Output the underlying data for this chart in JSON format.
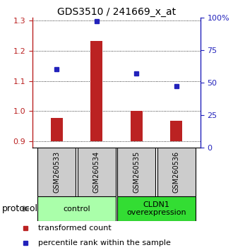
{
  "title": "GDS3510 / 241669_x_at",
  "samples": [
    "GSM260533",
    "GSM260534",
    "GSM260535",
    "GSM260536"
  ],
  "transformed_count": [
    0.977,
    1.232,
    1.002,
    0.968
  ],
  "percentile_rank": [
    60,
    97,
    57,
    47
  ],
  "ylim_left": [
    0.88,
    1.31
  ],
  "ylim_right": [
    0,
    100
  ],
  "yticks_left": [
    0.9,
    1.0,
    1.1,
    1.2,
    1.3
  ],
  "yticks_right": [
    0,
    25,
    50,
    75,
    100
  ],
  "ytick_labels_right": [
    "0",
    "25",
    "50",
    "75",
    "100%"
  ],
  "bar_color": "#bb2222",
  "dot_color": "#2222bb",
  "bar_baseline": 0.9,
  "bar_width": 0.3,
  "groups": [
    {
      "label": "control",
      "samples": [
        0,
        1
      ],
      "color": "#aaffaa"
    },
    {
      "label": "CLDN1\noverexpression",
      "samples": [
        2,
        3
      ],
      "color": "#33dd33"
    }
  ],
  "protocol_label": "protocol",
  "legend_bar_label": "transformed count",
  "legend_dot_label": "percentile rank within the sample",
  "title_fontsize": 10,
  "tick_fontsize": 8,
  "sample_fontsize": 7,
  "group_fontsize": 8,
  "legend_fontsize": 8
}
